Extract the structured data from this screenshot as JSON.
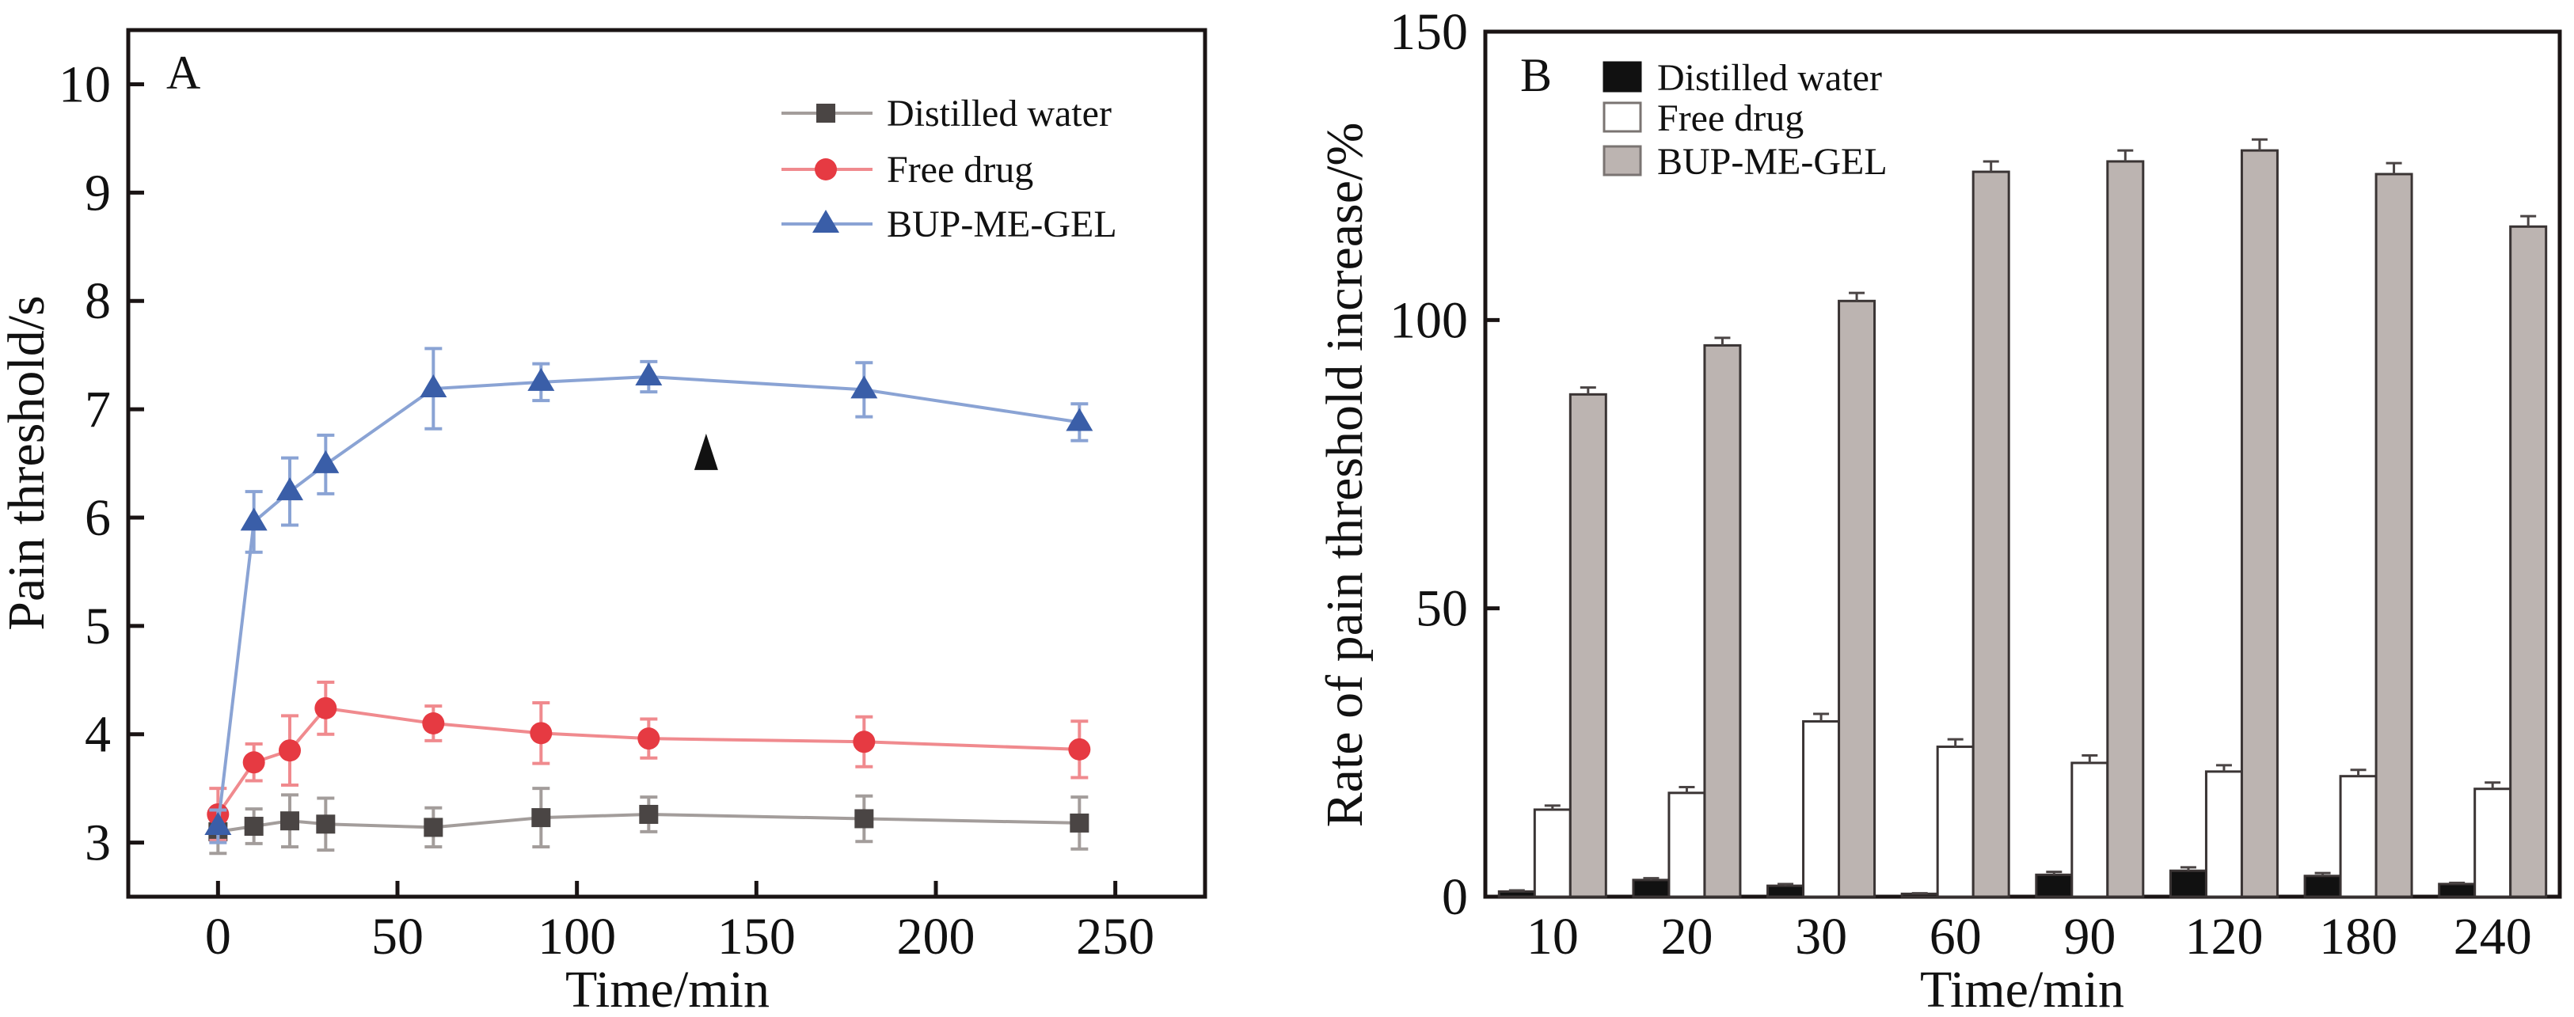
{
  "chart_data": [
    {
      "panel": "A",
      "type": "line",
      "xlabel": "Time/min",
      "ylabel": "Pain threshold/s",
      "xlim": [
        -25,
        275
      ],
      "ylim": [
        2.5,
        10.5
      ],
      "xticks": [
        0,
        50,
        100,
        150,
        200,
        250
      ],
      "yticks": [
        3,
        4,
        5,
        6,
        7,
        8,
        9,
        10
      ],
      "grid": false,
      "legend_position": "top-right",
      "x": [
        0,
        10,
        20,
        30,
        60,
        90,
        120,
        180,
        240
      ],
      "series": [
        {
          "name": "Distilled water",
          "marker": "square",
          "color": "#4a4544",
          "line_color": "#a39d9b",
          "values": [
            3.1,
            3.15,
            3.2,
            3.17,
            3.14,
            3.23,
            3.26,
            3.22,
            3.18
          ],
          "errors": [
            0.2,
            0.16,
            0.24,
            0.24,
            0.18,
            0.27,
            0.16,
            0.21,
            0.24
          ]
        },
        {
          "name": "Free drug",
          "marker": "circle",
          "color": "#e63a42",
          "line_color": "#f08a8e",
          "values": [
            3.26,
            3.74,
            3.85,
            4.24,
            4.1,
            4.01,
            3.96,
            3.93,
            3.86
          ],
          "errors": [
            0.24,
            0.17,
            0.32,
            0.24,
            0.16,
            0.28,
            0.18,
            0.23,
            0.26
          ]
        },
        {
          "name": "BUP-ME-GEL",
          "marker": "triangle",
          "color": "#3a5ea8",
          "line_color": "#8aa3d4",
          "values": [
            3.15,
            5.96,
            6.24,
            6.49,
            7.19,
            7.25,
            7.3,
            7.18,
            6.88
          ],
          "errors": [
            0.15,
            0.28,
            0.31,
            0.27,
            0.37,
            0.17,
            0.14,
            0.25,
            0.17
          ]
        }
      ],
      "annotations": [
        {
          "type": "marker",
          "symbol": "filled-triangle",
          "x": 136,
          "y": 6.6,
          "color": "#111111"
        }
      ]
    },
    {
      "panel": "B",
      "type": "bar",
      "xlabel": "Time/min",
      "ylabel": "Rate of pain threshold increase/%",
      "ylim": [
        0,
        150
      ],
      "yticks": [
        0,
        50,
        100,
        150
      ],
      "grid": false,
      "legend_position": "top-left",
      "categories": [
        "10",
        "20",
        "30",
        "60",
        "90",
        "120",
        "180",
        "240"
      ],
      "series": [
        {
          "name": "Distilled water",
          "color": "#111111",
          "values": [
            0.9,
            2.9,
            1.9,
            0.5,
            3.8,
            4.5,
            3.6,
            2.2
          ],
          "errors": [
            0.2,
            0.3,
            0.3,
            0.1,
            0.5,
            0.6,
            0.5,
            0.2
          ]
        },
        {
          "name": "Free drug",
          "color": "#ffffff",
          "values": [
            15.1,
            18.0,
            30.4,
            26.0,
            23.2,
            21.7,
            20.9,
            18.7
          ],
          "errors": [
            0.7,
            1.0,
            1.3,
            1.3,
            1.3,
            1.1,
            1.1,
            1.1
          ]
        },
        {
          "name": "BUP-ME-GEL",
          "color": "#bcb4b1",
          "values": [
            87.1,
            95.6,
            103.3,
            125.7,
            127.5,
            129.4,
            125.3,
            116.2
          ],
          "errors": [
            1.2,
            1.3,
            1.4,
            1.8,
            1.9,
            1.9,
            1.9,
            1.8
          ]
        }
      ]
    }
  ]
}
